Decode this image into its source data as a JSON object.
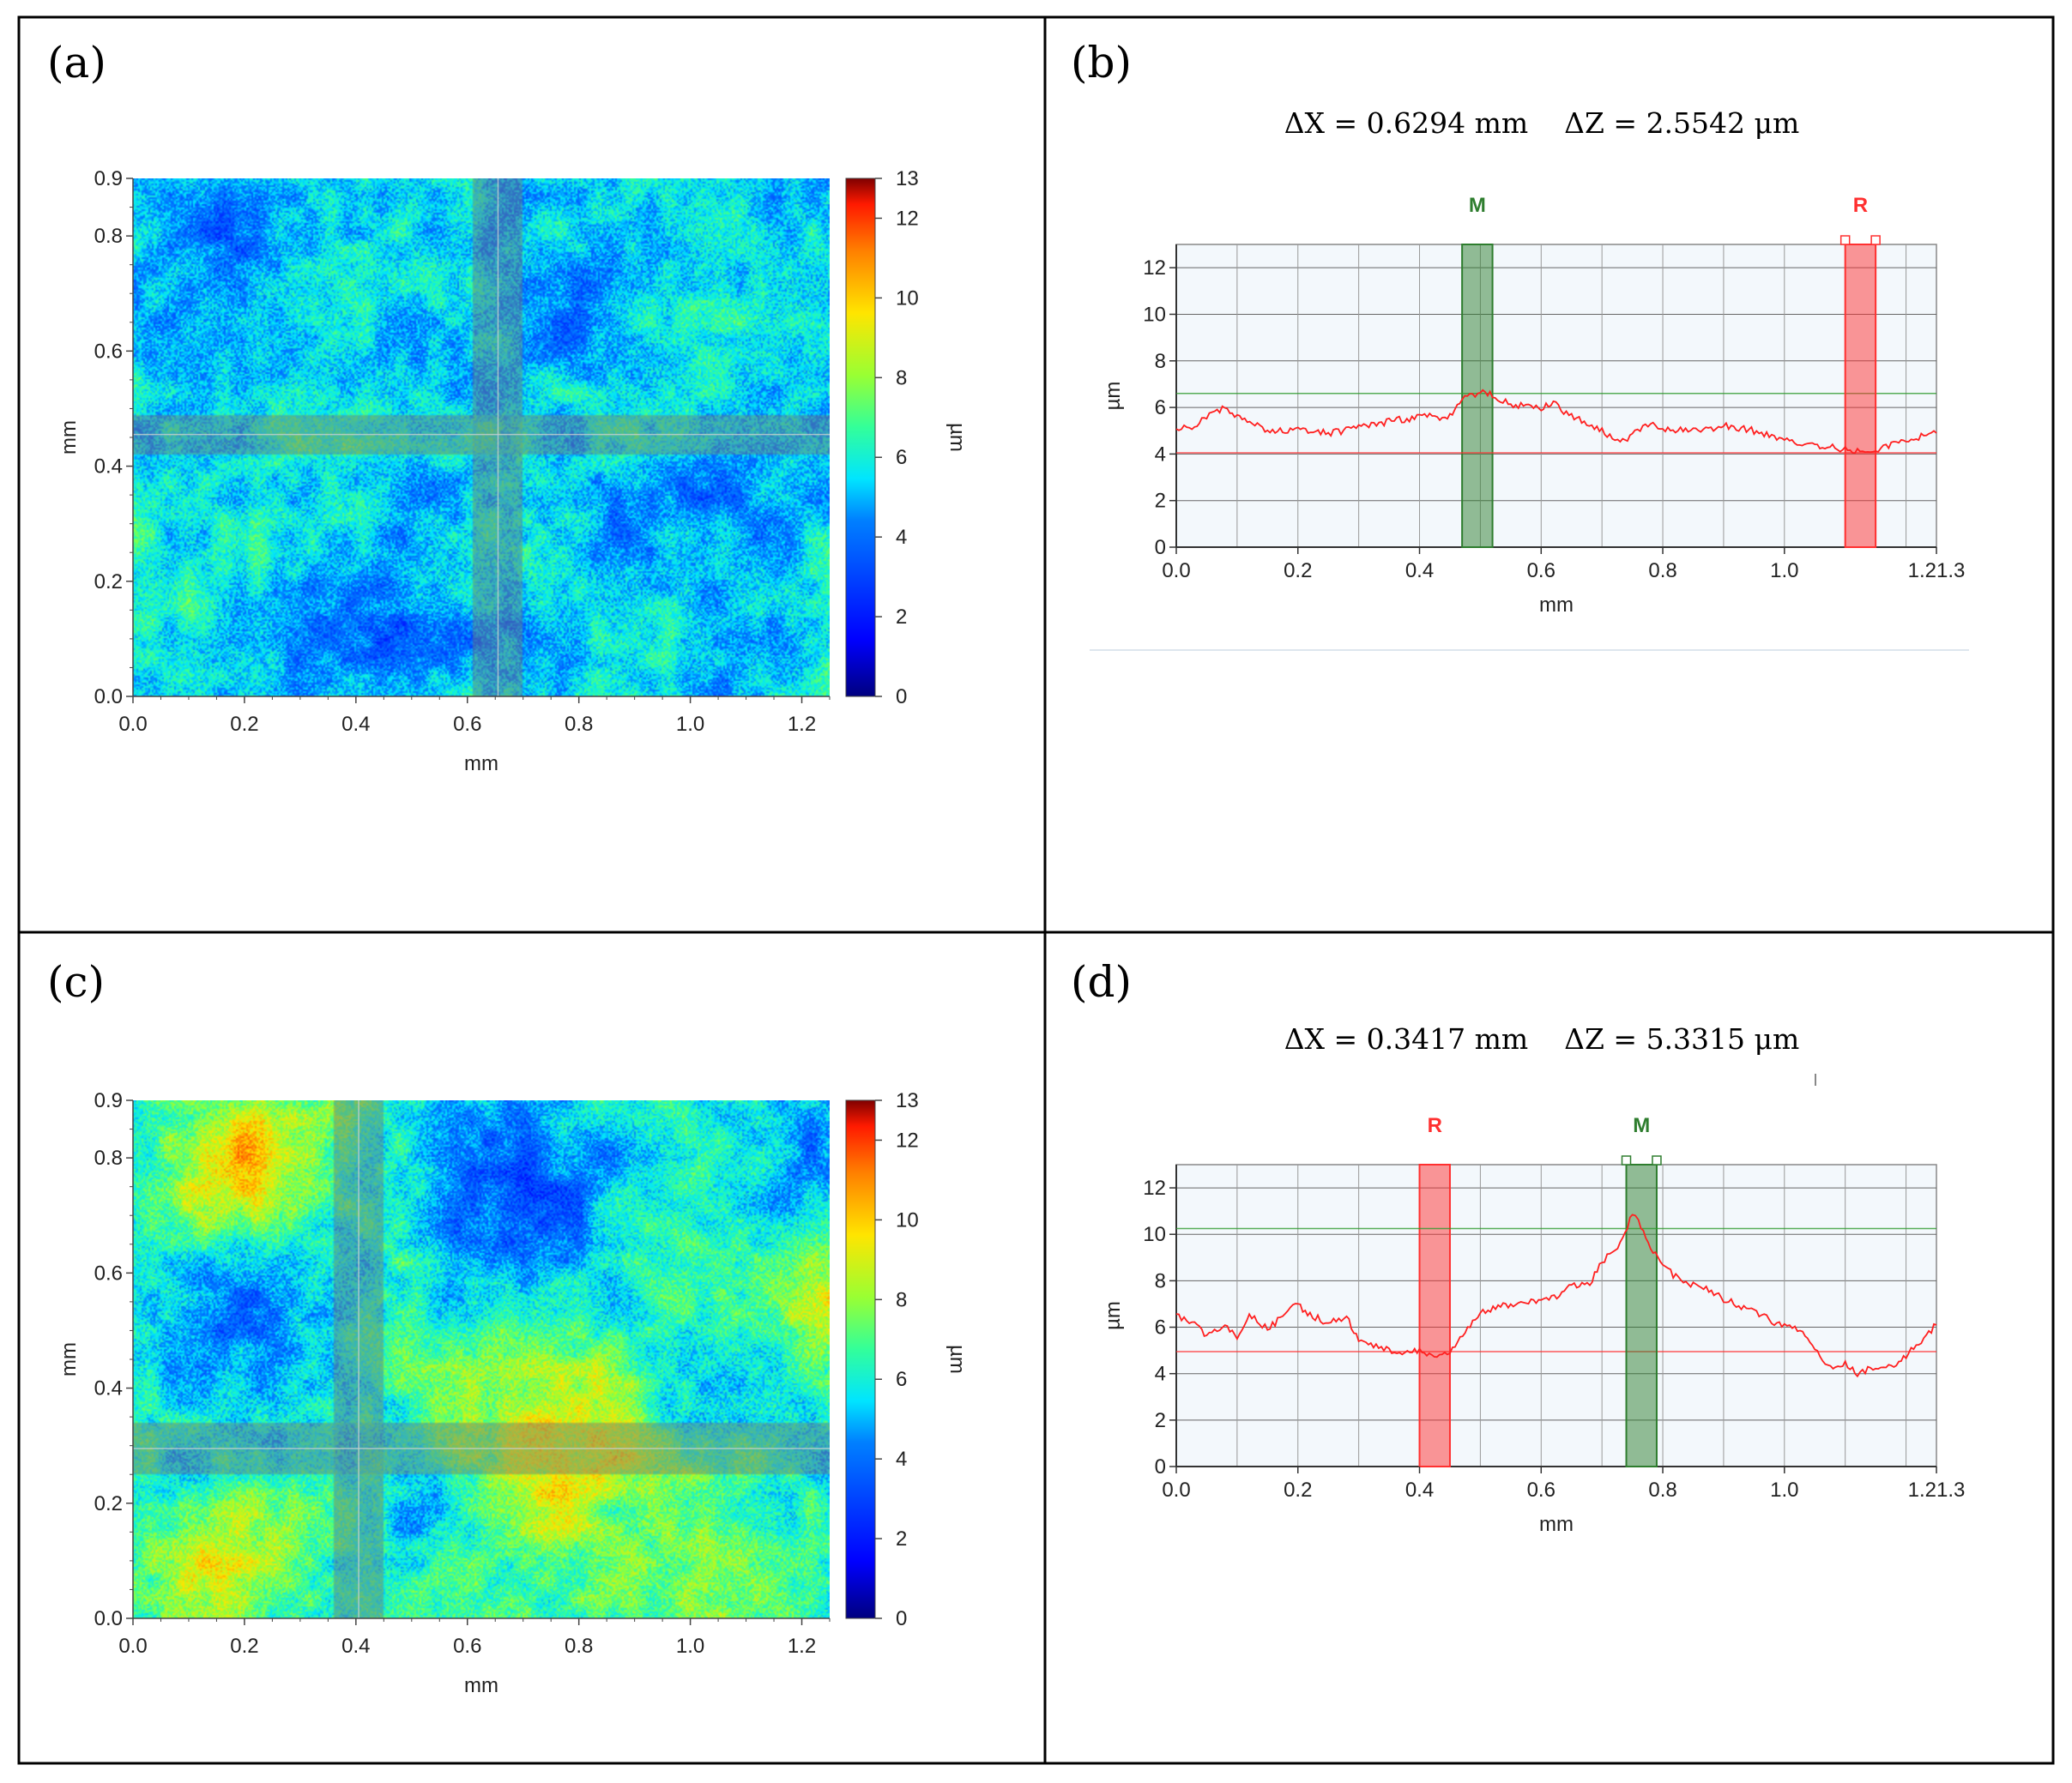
{
  "figure": {
    "panels": [
      {
        "label": "(a)"
      },
      {
        "label": "(b)",
        "measurement": "ΔX = 0.6294 mm    ΔZ = 2.5542 μm"
      },
      {
        "label": "(c)"
      },
      {
        "label": "(d)",
        "measurement": "ΔX = 0.3417 mm    ΔZ = 5.3315 μm"
      }
    ]
  },
  "colors": {
    "jet": [
      "#00007f",
      "#0000ff",
      "#0080ff",
      "#00e5ff",
      "#33ff99",
      "#99ff33",
      "#ffe500",
      "#ff8000",
      "#ff1a00",
      "#7f0000"
    ],
    "profile_line": "#ff2020",
    "marker_M": "#2e7d2e",
    "marker_R": "#ff3030"
  },
  "chart_data": [
    {
      "id": "a",
      "type": "heatmap",
      "title": "",
      "xlabel": "mm",
      "ylabel": "mm",
      "colorbar_label": "µm",
      "xlim": [
        0,
        1.25
      ],
      "ylim": [
        0,
        0.9
      ],
      "zlim": [
        0,
        13
      ],
      "xticks": [
        "0.0",
        "0.2",
        "0.4",
        "0.6",
        "0.8",
        "1.0",
        "1.2"
      ],
      "yticks": [
        "0.0",
        "0.2",
        "0.4",
        "0.6",
        "0.8",
        "0.9"
      ],
      "cbar_ticks": [
        "0",
        "2",
        "4",
        "6",
        "8",
        "10",
        "12",
        "13"
      ],
      "profile_band_x_mm": [
        0.61,
        0.7
      ],
      "profile_band_y_mm": [
        0.42,
        0.49
      ],
      "typical_height_um": 5.5,
      "blobs": [
        {
          "x": 0.15,
          "y": 0.8,
          "z": -1.5,
          "r": 0.12
        },
        {
          "x": 0.45,
          "y": 0.1,
          "z": -1.6,
          "r": 0.13
        },
        {
          "x": 0.78,
          "y": 0.65,
          "z": -1.2,
          "r": 0.12
        },
        {
          "x": 1.05,
          "y": 0.35,
          "z": -1.0,
          "r": 0.15
        },
        {
          "x": 1.0,
          "y": 0.72,
          "z": 0.8,
          "r": 0.12
        },
        {
          "x": 0.3,
          "y": 0.45,
          "z": 0.6,
          "r": 0.15
        },
        {
          "x": 0.2,
          "y": 0.25,
          "z": 0.5,
          "r": 0.12
        },
        {
          "x": 0.9,
          "y": 0.22,
          "z": -0.8,
          "r": 0.1
        }
      ]
    },
    {
      "id": "b",
      "type": "line",
      "xlabel": "mm",
      "ylabel": "µm",
      "xlim": [
        0,
        1.25
      ],
      "ylim": [
        0,
        13
      ],
      "xticks": [
        "0.0",
        "0.2",
        "0.4",
        "0.6",
        "0.8",
        "1.0",
        "1.21.3"
      ],
      "yticks": [
        "0",
        "2",
        "4",
        "6",
        "8",
        "10",
        "12"
      ],
      "markers": [
        {
          "label": "M",
          "x_range": [
            0.47,
            0.52
          ],
          "level": 6.6
        },
        {
          "label": "R",
          "x_range": [
            1.1,
            1.15
          ],
          "level": 4.05
        }
      ],
      "x": [
        0.0,
        0.03,
        0.05,
        0.08,
        0.1,
        0.15,
        0.2,
        0.25,
        0.3,
        0.35,
        0.4,
        0.45,
        0.47,
        0.5,
        0.52,
        0.55,
        0.6,
        0.62,
        0.65,
        0.7,
        0.73,
        0.75,
        0.78,
        0.8,
        0.85,
        0.9,
        0.95,
        1.0,
        1.05,
        1.1,
        1.12,
        1.15,
        1.18,
        1.2,
        1.25
      ],
      "y": [
        5.0,
        5.2,
        5.6,
        6.0,
        5.6,
        5.0,
        5.0,
        4.9,
        5.1,
        5.4,
        5.6,
        5.6,
        6.3,
        6.7,
        6.5,
        6.1,
        6.0,
        6.2,
        5.6,
        5.0,
        4.5,
        4.8,
        5.4,
        5.1,
        5.0,
        5.2,
        5.0,
        4.6,
        4.4,
        4.2,
        4.1,
        4.1,
        4.5,
        4.6,
        4.9
      ]
    },
    {
      "id": "c",
      "type": "heatmap",
      "title": "",
      "xlabel": "mm",
      "ylabel": "mm",
      "colorbar_label": "µm",
      "xlim": [
        0,
        1.25
      ],
      "ylim": [
        0,
        0.9
      ],
      "zlim": [
        0,
        13
      ],
      "xticks": [
        "0.0",
        "0.2",
        "0.4",
        "0.6",
        "0.8",
        "1.0",
        "1.2"
      ],
      "yticks": [
        "0.0",
        "0.2",
        "0.4",
        "0.6",
        "0.8",
        "0.9"
      ],
      "cbar_ticks": [
        "0",
        "2",
        "4",
        "6",
        "8",
        "10",
        "12",
        "13"
      ],
      "profile_band_x_mm": [
        0.36,
        0.45
      ],
      "profile_band_y_mm": [
        0.25,
        0.34
      ],
      "typical_height_um": 6.3,
      "blobs": [
        {
          "x": 0.2,
          "y": 0.8,
          "z": 3.5,
          "r": 0.15
        },
        {
          "x": 0.75,
          "y": 0.3,
          "z": 3.5,
          "r": 0.17
        },
        {
          "x": 0.15,
          "y": 0.1,
          "z": 2.2,
          "r": 0.12
        },
        {
          "x": 1.0,
          "y": 0.08,
          "z": 2.0,
          "r": 0.12
        },
        {
          "x": 1.22,
          "y": 0.55,
          "z": 2.5,
          "r": 0.1
        },
        {
          "x": 0.7,
          "y": 0.75,
          "z": -2.8,
          "r": 0.17
        },
        {
          "x": 0.2,
          "y": 0.5,
          "z": -2.5,
          "r": 0.15
        },
        {
          "x": 1.2,
          "y": 0.82,
          "z": -1.8,
          "r": 0.1
        },
        {
          "x": 0.55,
          "y": 0.2,
          "z": -1.5,
          "r": 0.1
        },
        {
          "x": 1.05,
          "y": 0.45,
          "z": -1.0,
          "r": 0.12
        }
      ]
    },
    {
      "id": "d",
      "type": "line",
      "xlabel": "mm",
      "ylabel": "µm",
      "xlim": [
        0,
        1.25
      ],
      "ylim": [
        0,
        13
      ],
      "xticks": [
        "0.0",
        "0.2",
        "0.4",
        "0.6",
        "0.8",
        "1.0",
        "1.21.3"
      ],
      "yticks": [
        "0",
        "2",
        "4",
        "6",
        "8",
        "10",
        "12"
      ],
      "markers": [
        {
          "label": "R",
          "x_range": [
            0.4,
            0.45
          ],
          "level": 4.95
        },
        {
          "label": "M",
          "x_range": [
            0.74,
            0.79
          ],
          "level": 10.25
        }
      ],
      "x": [
        0.0,
        0.03,
        0.05,
        0.08,
        0.1,
        0.12,
        0.15,
        0.2,
        0.22,
        0.25,
        0.28,
        0.3,
        0.32,
        0.35,
        0.38,
        0.4,
        0.42,
        0.45,
        0.5,
        0.55,
        0.6,
        0.63,
        0.65,
        0.68,
        0.7,
        0.73,
        0.75,
        0.76,
        0.78,
        0.8,
        0.83,
        0.85,
        0.88,
        0.9,
        0.95,
        1.0,
        1.03,
        1.05,
        1.08,
        1.1,
        1.12,
        1.15,
        1.18,
        1.2,
        1.25
      ],
      "y": [
        6.5,
        6.2,
        5.6,
        6.1,
        5.5,
        6.6,
        5.9,
        7.0,
        6.5,
        6.2,
        6.4,
        5.5,
        5.2,
        5.0,
        4.9,
        5.0,
        4.8,
        5.0,
        6.6,
        7.0,
        7.2,
        7.4,
        7.8,
        7.9,
        8.8,
        9.6,
        10.9,
        10.5,
        9.5,
        8.6,
        8.0,
        7.8,
        7.6,
        7.2,
        6.7,
        6.0,
        5.9,
        5.0,
        4.2,
        4.5,
        4.0,
        4.3,
        4.3,
        4.8,
        6.1
      ]
    }
  ]
}
